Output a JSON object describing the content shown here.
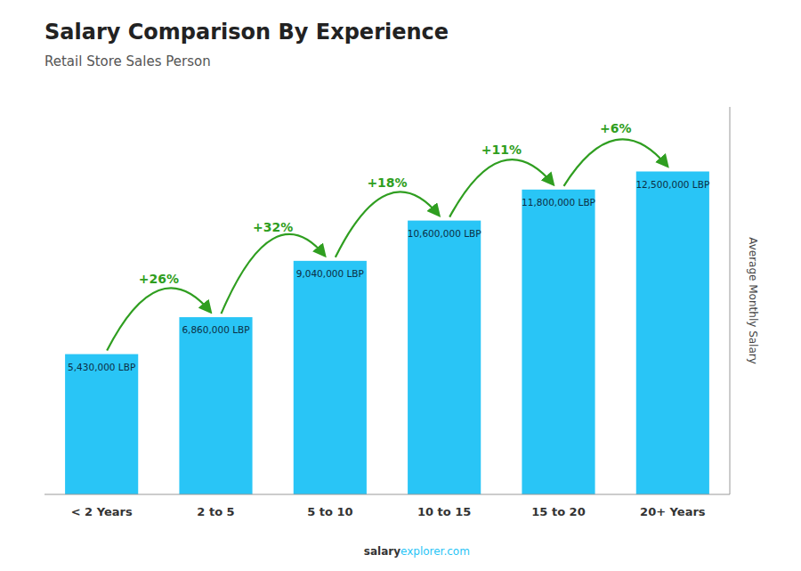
{
  "chart_data": {
    "type": "bar",
    "title": "Salary Comparison By Experience",
    "subtitle": "Retail Store Sales Person",
    "ylabel": "Average Monthly Salary",
    "categories": [
      "< 2 Years",
      "2 to 5",
      "5 to 10",
      "10 to 15",
      "15 to 20",
      "20+ Years"
    ],
    "values": [
      5430000,
      6860000,
      9040000,
      10600000,
      11800000,
      12500000
    ],
    "value_labels": [
      "5,430,000 LBP",
      "6,860,000 LBP",
      "9,040,000 LBP",
      "10,600,000 LBP",
      "11,800,000 LBP",
      "12,500,000 LBP"
    ],
    "annotations": [
      "+26%",
      "+32%",
      "+18%",
      "+11%",
      "+6%"
    ],
    "footer": [
      "salary",
      "explorer.com"
    ],
    "color": "#29c5f6",
    "ylim": [
      0,
      15000000
    ],
    "grid": false,
    "data_labels": true,
    "tick_labels": "x"
  }
}
